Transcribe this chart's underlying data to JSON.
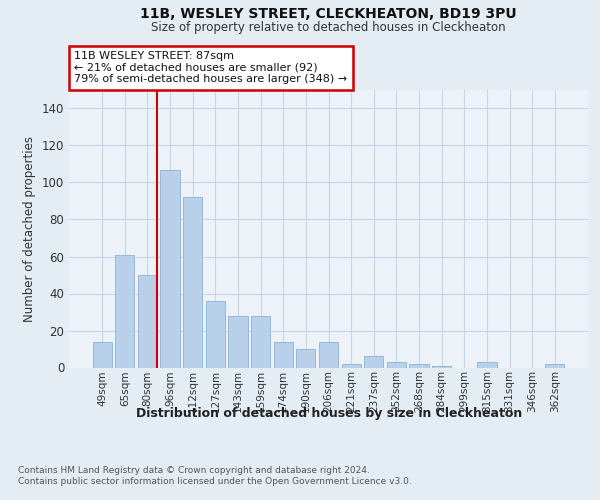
{
  "title": "11B, WESLEY STREET, CLECKHEATON, BD19 3PU",
  "subtitle": "Size of property relative to detached houses in Cleckheaton",
  "xlabel": "Distribution of detached houses by size in Cleckheaton",
  "ylabel": "Number of detached properties",
  "footnote1": "Contains HM Land Registry data © Crown copyright and database right 2024.",
  "footnote2": "Contains public sector information licensed under the Open Government Licence v3.0.",
  "categories": [
    "49sqm",
    "65sqm",
    "80sqm",
    "96sqm",
    "112sqm",
    "127sqm",
    "143sqm",
    "159sqm",
    "174sqm",
    "190sqm",
    "206sqm",
    "221sqm",
    "237sqm",
    "252sqm",
    "268sqm",
    "284sqm",
    "299sqm",
    "315sqm",
    "331sqm",
    "346sqm",
    "362sqm"
  ],
  "values": [
    14,
    61,
    50,
    107,
    92,
    36,
    28,
    28,
    14,
    10,
    14,
    2,
    6,
    3,
    2,
    1,
    0,
    3,
    0,
    0,
    2
  ],
  "bar_color": "#b8d0ea",
  "bar_edge_color": "#8ab4d8",
  "vline_color": "#cc0000",
  "annotation_text": "11B WESLEY STREET: 87sqm\n← 21% of detached houses are smaller (92)\n79% of semi-detached houses are larger (348) →",
  "annotation_box_edgecolor": "#cc0000",
  "annotation_box_facecolor": "#ffffff",
  "ylim": [
    0,
    150
  ],
  "yticks": [
    0,
    20,
    40,
    60,
    80,
    100,
    120,
    140
  ],
  "grid_color": "#c8d4e8",
  "background_color": "#e4ecf4",
  "plot_bg_color": "#edf2f9"
}
